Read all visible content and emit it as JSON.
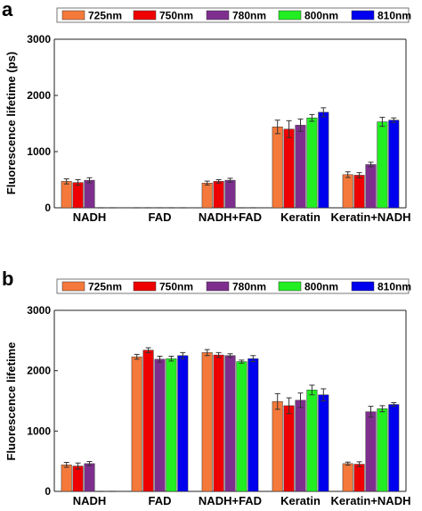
{
  "chart_data": [
    {
      "panel": "a",
      "type": "bar",
      "ylabel": "Fluorescence lifetime (ps)",
      "ylim": [
        0,
        3000
      ],
      "yticks": [
        "0",
        "1000",
        "2000",
        "3000"
      ],
      "categories": [
        "NADH",
        "FAD",
        "NADH+FAD",
        "Keratin",
        "Keratin+NADH"
      ],
      "legend_position": "top",
      "series": [
        {
          "name": "725nm",
          "color": "#f5793a",
          "values": [
            470,
            0,
            440,
            1440,
            590
          ],
          "errors": [
            45,
            0,
            35,
            120,
            50
          ]
        },
        {
          "name": "750nm",
          "color": "#ee0000",
          "values": [
            450,
            0,
            470,
            1400,
            580
          ],
          "errors": [
            50,
            0,
            30,
            150,
            45
          ]
        },
        {
          "name": "780nm",
          "color": "#7e2f8e",
          "values": [
            490,
            0,
            490,
            1470,
            770
          ],
          "errors": [
            45,
            0,
            35,
            110,
            40
          ]
        },
        {
          "name": "800nm",
          "color": "#22ee22",
          "values": [
            0,
            0,
            0,
            1600,
            1530
          ],
          "errors": [
            0,
            0,
            0,
            60,
            80
          ]
        },
        {
          "name": "810nm",
          "color": "#0000ee",
          "values": [
            0,
            0,
            0,
            1700,
            1560
          ],
          "errors": [
            0,
            0,
            0,
            80,
            40
          ]
        }
      ]
    },
    {
      "panel": "b",
      "type": "bar",
      "ylabel": "Fluorescence lifetime",
      "ylim": [
        0,
        3000
      ],
      "yticks": [
        "0",
        "1000",
        "2000",
        "3000"
      ],
      "categories": [
        "NADH",
        "FAD",
        "NADH+FAD",
        "Keratin",
        "Keratin+NADH"
      ],
      "legend_position": "top",
      "series": [
        {
          "name": "725nm",
          "color": "#f5793a",
          "values": [
            440,
            2230,
            2300,
            1490,
            460
          ],
          "errors": [
            40,
            40,
            50,
            130,
            25
          ]
        },
        {
          "name": "750nm",
          "color": "#ee0000",
          "values": [
            420,
            2340,
            2260,
            1420,
            450
          ],
          "errors": [
            50,
            40,
            40,
            130,
            40
          ]
        },
        {
          "name": "780nm",
          "color": "#7e2f8e",
          "values": [
            460,
            2190,
            2250,
            1510,
            1320
          ],
          "errors": [
            35,
            50,
            30,
            120,
            90
          ]
        },
        {
          "name": "800nm",
          "color": "#22ee22",
          "values": [
            0,
            2200,
            2150,
            1680,
            1370
          ],
          "errors": [
            0,
            40,
            25,
            80,
            50
          ]
        },
        {
          "name": "810nm",
          "color": "#0000ee",
          "values": [
            0,
            2250,
            2200,
            1600,
            1440
          ],
          "errors": [
            0,
            50,
            50,
            100,
            30
          ]
        }
      ]
    }
  ]
}
